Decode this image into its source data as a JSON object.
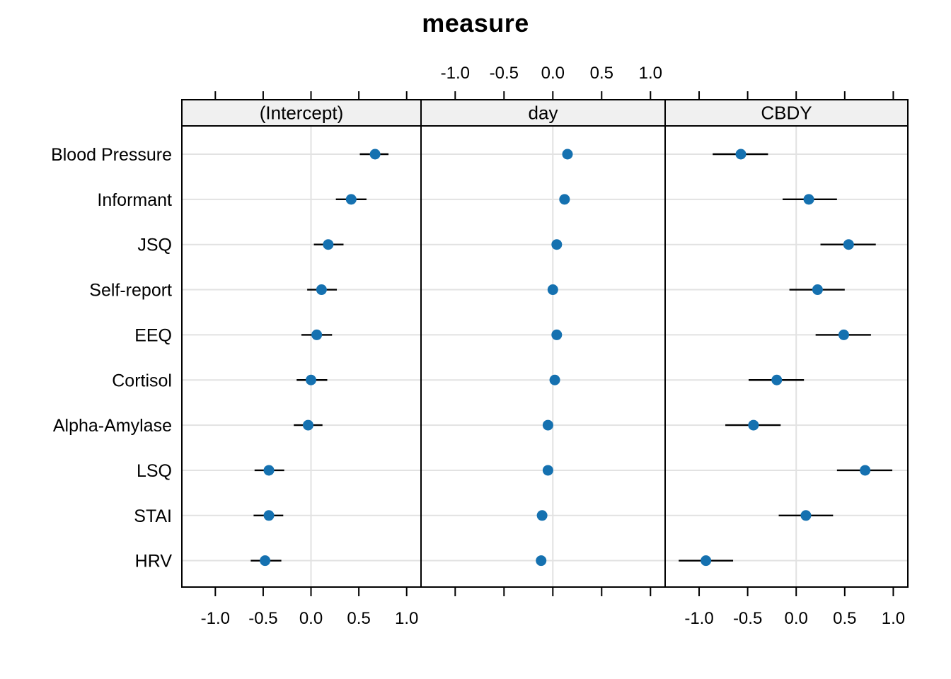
{
  "chart_data": {
    "type": "scatter",
    "subtype": "dot-and-whisker coefficient plot, lattice-style trellis with 3 panels sharing a y-axis",
    "title": "measure",
    "categories": [
      "Blood Pressure",
      "Informant",
      "JSQ",
      "Self-report",
      "EEQ",
      "Cortisol",
      "Alpha-Amylase",
      "LSQ",
      "STAI",
      "HRV"
    ],
    "panels": [
      {
        "label": "(Intercept)",
        "x_axis_labels_shown": "bottom",
        "series": {
          "name": "(Intercept)",
          "estimates": [
            0.67,
            0.42,
            0.18,
            0.11,
            0.06,
            0.0,
            -0.03,
            -0.44,
            -0.44,
            -0.48
          ],
          "ci_low": [
            0.51,
            0.26,
            0.03,
            -0.04,
            -0.1,
            -0.15,
            -0.18,
            -0.59,
            -0.6,
            -0.63
          ],
          "ci_high": [
            0.81,
            0.58,
            0.34,
            0.27,
            0.22,
            0.17,
            0.12,
            -0.28,
            -0.29,
            -0.31
          ]
        }
      },
      {
        "label": "day",
        "x_axis_labels_shown": "top",
        "series": {
          "name": "day",
          "estimates": [
            0.15,
            0.12,
            0.04,
            0.0,
            0.04,
            0.02,
            -0.05,
            -0.05,
            -0.11,
            -0.12
          ],
          "ci_low": [
            0.13,
            0.1,
            0.02,
            -0.02,
            0.02,
            0.0,
            -0.07,
            -0.07,
            -0.13,
            -0.14
          ],
          "ci_high": [
            0.17,
            0.14,
            0.06,
            0.02,
            0.06,
            0.04,
            -0.03,
            -0.03,
            -0.09,
            -0.1
          ]
        }
      },
      {
        "label": "CBDY",
        "x_axis_labels_shown": "bottom",
        "series": {
          "name": "CBDY",
          "estimates": [
            -0.57,
            0.13,
            0.54,
            0.22,
            0.49,
            -0.2,
            -0.44,
            0.71,
            0.1,
            -0.93
          ],
          "ci_low": [
            -0.86,
            -0.14,
            0.25,
            -0.07,
            0.2,
            -0.49,
            -0.73,
            0.42,
            -0.18,
            -1.21
          ],
          "ci_high": [
            -0.29,
            0.42,
            0.82,
            0.5,
            0.77,
            0.08,
            -0.16,
            0.99,
            0.38,
            -0.65
          ]
        }
      }
    ],
    "xlim": [
      -1.35,
      1.15
    ],
    "x_ticks": [
      -1.0,
      -0.5,
      0.0,
      0.5,
      1.0
    ],
    "x_tick_labels": [
      "-1.0",
      "-0.5",
      "0.0",
      "0.5",
      "1.0"
    ],
    "grid": "horizontal gridline at every category row plus vertical gridline at x=0 in each panel; ticks on top edge (all panels) and bottom edge (all panels)",
    "legend": "none",
    "colors": {
      "point": "#1571b0",
      "whisker": "#000000",
      "gridline": "#e2e2e2",
      "panel_border": "#000000",
      "strip_background": "#f0f0f0",
      "tick": "#000000",
      "text": "#000000",
      "background": "#ffffff"
    }
  }
}
